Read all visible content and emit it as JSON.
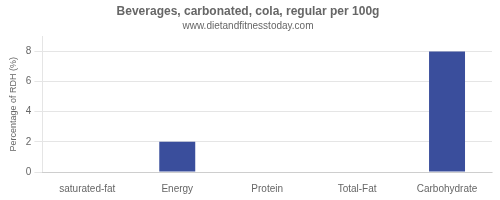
{
  "chart_data": {
    "type": "bar",
    "title": "Beverages, carbonated, cola, regular per 100g",
    "subtitle": "www.dietandfitnesstoday.com",
    "categories": [
      "saturated-fat",
      "Energy",
      "Protein",
      "Total-Fat",
      "Carbohydrate"
    ],
    "values": [
      0,
      2,
      0,
      0,
      8
    ],
    "color": "#3a4e9c",
    "ylabel": "Percentage of RDH (%)",
    "ylim": [
      0,
      9
    ],
    "yticks": [
      0,
      2,
      4,
      6,
      8
    ],
    "grid": true
  }
}
